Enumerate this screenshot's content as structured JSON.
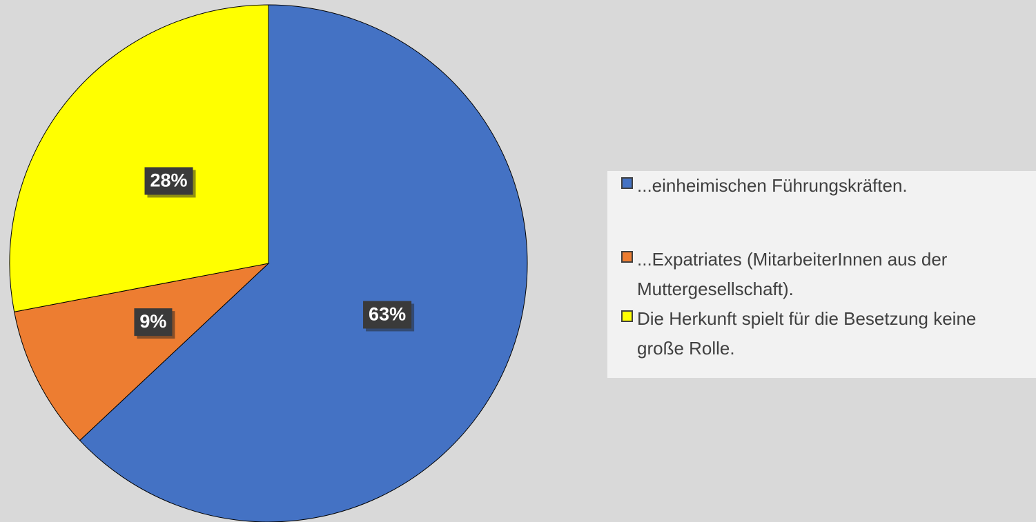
{
  "chart_data": {
    "type": "pie",
    "categories": [
      "...einheimischen Führungskräften.",
      "...Expatriates (MitarbeiterInnen aus der Muttergesellschaft).",
      "Die Herkunft spielt für die Besetzung keine große Rolle."
    ],
    "values": [
      63,
      9,
      28
    ],
    "value_labels": [
      "63%",
      "9%",
      "28%"
    ],
    "colors": [
      "#4472c4",
      "#ed7d31",
      "#ffff00"
    ],
    "legend": "right"
  }
}
